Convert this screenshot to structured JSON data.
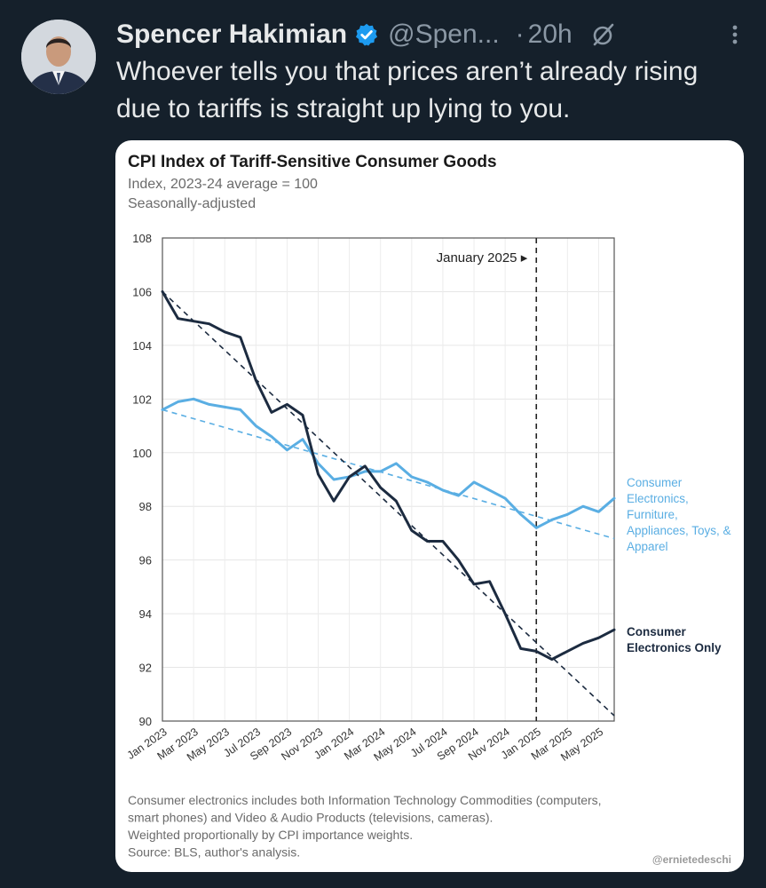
{
  "post": {
    "author_name": "Spencer Hakimian",
    "handle": "@Spen...",
    "separator": "·",
    "time": "20h",
    "text": "Whoever tells you that prices aren’t already rising due to tariffs is straight up lying to you.",
    "icons": {
      "verified": "verified-badge-icon",
      "grok": "grok-icon",
      "more": "more-options-icon"
    },
    "colors": {
      "background": "#15202b",
      "text": "#e7e9ea",
      "muted": "#8b98a5",
      "verified": "#1d9bf0"
    }
  },
  "chart_data": {
    "type": "line",
    "title": "CPI Index of Tariff-Sensitive Consumer Goods",
    "subtitle": "Index, 2023-24 average = 100",
    "subtitle2": "Seasonally-adjusted",
    "ylim": [
      90,
      108
    ],
    "yticks": [
      90,
      92,
      94,
      96,
      98,
      100,
      102,
      104,
      106,
      108
    ],
    "x_range": [
      0,
      29
    ],
    "xtick_labels": [
      "Jan 2023",
      "Mar 2023",
      "May 2023",
      "Jul 2023",
      "Sep 2023",
      "Nov 2023",
      "Jan 2024",
      "Mar 2024",
      "May 2024",
      "Jul 2024",
      "Sep 2024",
      "Nov 2024",
      "Jan 2025",
      "Mar 2025",
      "May 2025"
    ],
    "xtick_positions": [
      0,
      2,
      4,
      6,
      8,
      10,
      12,
      14,
      16,
      18,
      20,
      22,
      24,
      26,
      28
    ],
    "annotation": {
      "label": "January 2025 ▸",
      "x": 24
    },
    "series": [
      {
        "name": "Consumer Electronics, Furniture, Appliances, Toys, & Apparel",
        "label_lines": [
          "Consumer",
          "Electronics,",
          "Furniture,",
          "Appliances, Toys, &",
          "Apparel"
        ],
        "color": "#5aaee3",
        "values": [
          101.6,
          101.9,
          102.0,
          101.8,
          101.7,
          101.6,
          101.0,
          100.6,
          100.1,
          100.5,
          99.6,
          99.0,
          99.1,
          99.3,
          99.3,
          99.6,
          99.1,
          98.9,
          98.6,
          98.4,
          98.9,
          98.6,
          98.3,
          97.7,
          97.2,
          97.5,
          97.7,
          98.0,
          97.8,
          98.3
        ],
        "trend": [
          101.6,
          96.8
        ]
      },
      {
        "name": "Consumer Electronics Only",
        "label_lines": [
          "Consumer",
          "Electronics Only"
        ],
        "color": "#1c2b40",
        "values": [
          106.0,
          105.0,
          104.9,
          104.8,
          104.5,
          104.3,
          102.7,
          101.5,
          101.8,
          101.4,
          99.2,
          98.2,
          99.1,
          99.5,
          98.7,
          98.2,
          97.1,
          96.7,
          96.7,
          96.0,
          95.1,
          95.2,
          94.0,
          92.7,
          92.6,
          92.3,
          92.6,
          92.9,
          93.1,
          93.4
        ],
        "trend": [
          106.0,
          90.2
        ]
      }
    ],
    "notes": [
      "Consumer electronics includes both Information Technology Commodities (computers,",
      "smart phones) and Video & Audio Products (televisions, cameras).",
      "Weighted proportionally by CPI importance weights.",
      "Source: BLS, author's analysis."
    ],
    "credit": "@ernietedeschi",
    "grid": true,
    "legend": "right-inline"
  }
}
